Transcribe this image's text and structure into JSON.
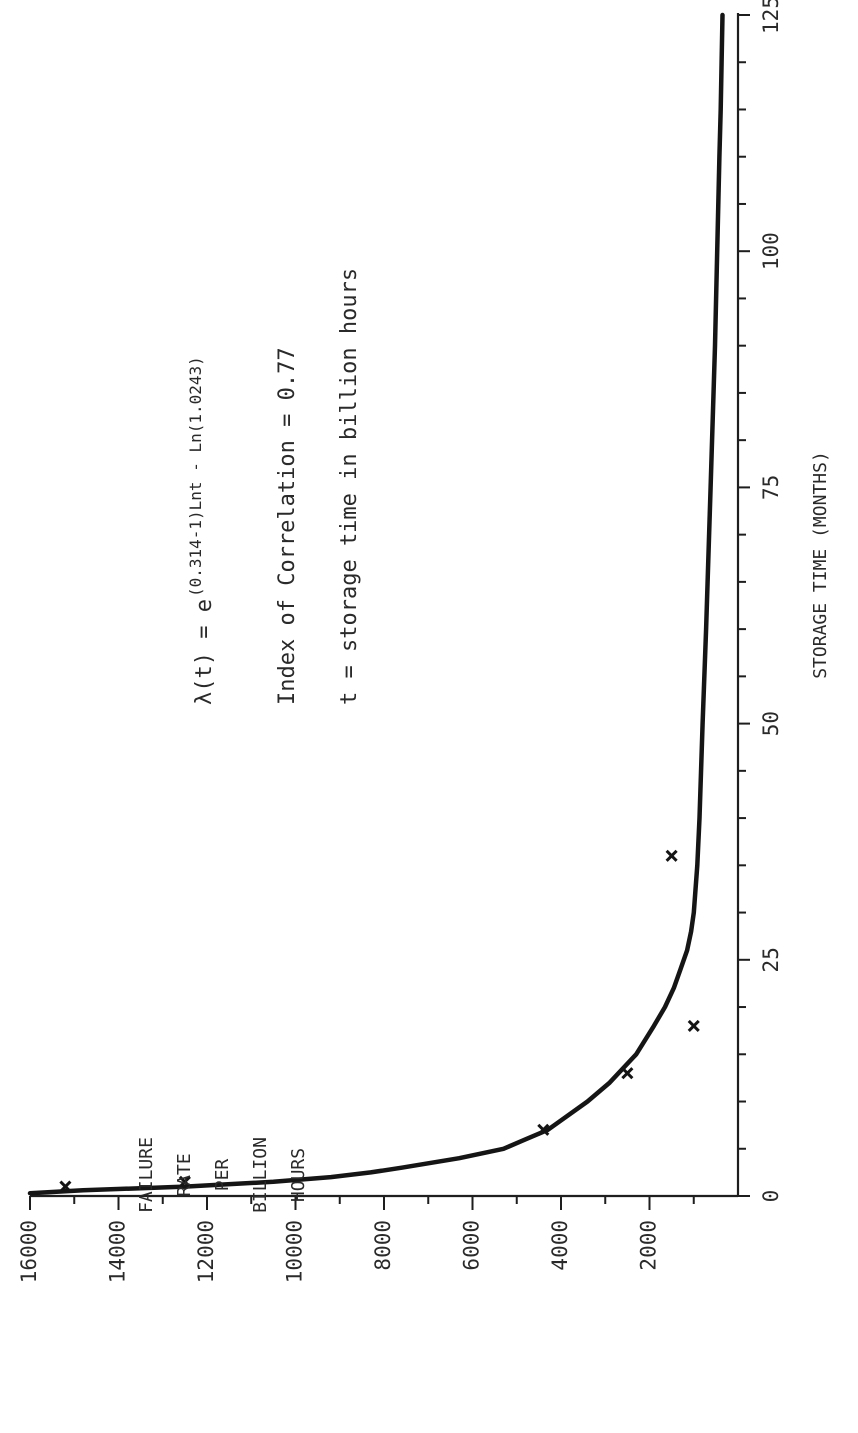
{
  "chart_data": {
    "type": "line",
    "xlabel": "STORAGE TIME  (MONTHS)",
    "ylabel_lines": [
      "FAILURE",
      "RATE",
      "PER",
      "BILLION",
      "HOURS"
    ],
    "xlim": [
      0,
      125
    ],
    "ylim": [
      0,
      16000
    ],
    "x_ticks": [
      0,
      25,
      50,
      75,
      100,
      125
    ],
    "x_tick_labels": [
      "0",
      "25",
      "50",
      "75",
      "100",
      "125"
    ],
    "x_minor_step": 5,
    "y_ticks": [
      2000,
      4000,
      6000,
      8000,
      10000,
      12000,
      14000,
      16000
    ],
    "y_tick_labels": [
      "2000",
      "4000",
      "6000",
      "8000",
      "10000",
      "12000",
      "14000",
      "16000"
    ],
    "y_minor_step": 1000,
    "grid": false,
    "orientation": "rotated 90° counter-clockwise on page",
    "equation_lhs": "λ(t) = e",
    "equation_exponent": "(0.314-1)Lnt - Ln(1.0243)",
    "correlation_text": "Index of Correlation = 0.77",
    "t_definition": "t = storage time in billion hours",
    "series": [
      {
        "type": "line",
        "x": [
          0.3,
          0.6,
          1,
          1.5,
          2,
          2.5,
          3,
          4,
          5,
          6,
          7,
          8,
          10,
          12,
          15,
          18,
          20,
          22,
          24,
          26,
          28,
          30,
          35,
          40,
          50,
          60,
          75,
          90,
          100,
          110,
          115,
          120,
          125
        ],
        "y": [
          16000,
          14800,
          12500,
          10500,
          9200,
          8300,
          7600,
          6300,
          5300,
          4800,
          4300,
          4000,
          3400,
          2900,
          2300,
          1900,
          1650,
          1450,
          1300,
          1150,
          1060,
          1000,
          920,
          870,
          800,
          720,
          620,
          520,
          470,
          420,
          390,
          370,
          350
        ]
      },
      {
        "type": "scatter",
        "marker": "x",
        "x": [
          1,
          1.5,
          7,
          13,
          18,
          36
        ],
        "y": [
          15200,
          12500,
          4400,
          2500,
          1000,
          1500
        ]
      }
    ]
  }
}
